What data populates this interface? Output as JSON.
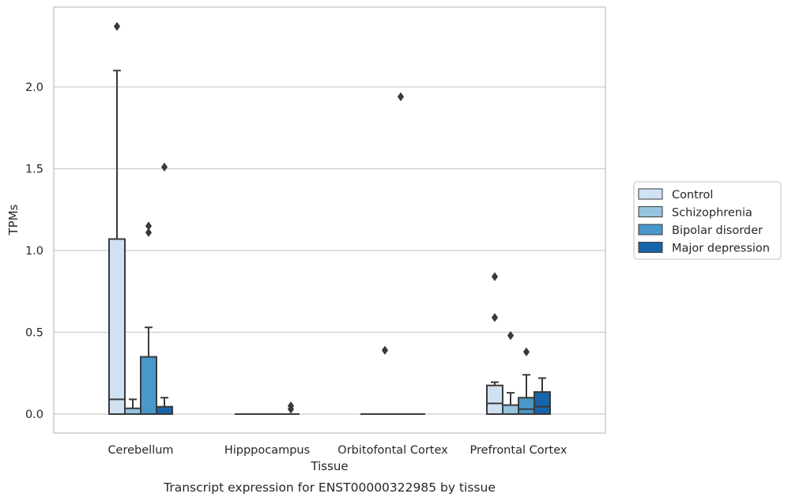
{
  "chart_data": {
    "type": "boxplot",
    "caption": "Transcript expression for ENST00000322985 by tissue",
    "xlabel": "Tissue",
    "ylabel": "TPMs",
    "ylim": [
      -0.115,
      2.49
    ],
    "yticks": [
      0.0,
      0.5,
      1.0,
      1.5,
      2.0
    ],
    "ytick_labels": [
      "0.0",
      "0.5",
      "1.0",
      "1.5",
      "2.0"
    ],
    "categories": [
      "Cerebellum",
      "Hipppocampus",
      "Orbitofontal Cortex",
      "Prefrontal Cortex"
    ],
    "grid": "horizontal",
    "legend_position": "right-outside",
    "series": [
      {
        "name": "Control",
        "color": "#d0e1f2",
        "boxes": [
          {
            "q1": 0.0,
            "median": 0.09,
            "q3": 1.07,
            "whisker_low": 0.0,
            "whisker_high": 2.1,
            "outliers": [
              2.37
            ]
          },
          {
            "q1": 0.0,
            "median": 0.0,
            "q3": 0.0,
            "whisker_low": 0.0,
            "whisker_high": 0.0,
            "outliers": []
          },
          {
            "q1": 0.0,
            "median": 0.0,
            "q3": 0.0,
            "whisker_low": 0.0,
            "whisker_high": 0.0,
            "outliers": []
          },
          {
            "q1": 0.0,
            "median": 0.065,
            "q3": 0.175,
            "whisker_low": 0.0,
            "whisker_high": 0.195,
            "outliers": [
              0.84,
              0.59
            ]
          }
        ]
      },
      {
        "name": "Schizophrenia",
        "color": "#94c4df",
        "boxes": [
          {
            "q1": 0.0,
            "median": 0.0,
            "q3": 0.035,
            "whisker_low": 0.0,
            "whisker_high": 0.09,
            "outliers": []
          },
          {
            "q1": 0.0,
            "median": 0.0,
            "q3": 0.0,
            "whisker_low": 0.0,
            "whisker_high": 0.0,
            "outliers": []
          },
          {
            "q1": 0.0,
            "median": 0.0,
            "q3": 0.0,
            "whisker_low": 0.0,
            "whisker_high": 0.0,
            "outliers": [
              0.39
            ]
          },
          {
            "q1": 0.0,
            "median": 0.0,
            "q3": 0.055,
            "whisker_low": 0.0,
            "whisker_high": 0.13,
            "outliers": [
              0.48
            ]
          }
        ]
      },
      {
        "name": "Bipolar disorder",
        "color": "#4a98c9",
        "boxes": [
          {
            "q1": 0.0,
            "median": 0.0,
            "q3": 0.35,
            "whisker_low": 0.0,
            "whisker_high": 0.53,
            "outliers": [
              1.15,
              1.11
            ]
          },
          {
            "q1": 0.0,
            "median": 0.0,
            "q3": 0.0,
            "whisker_low": 0.0,
            "whisker_high": 0.0,
            "outliers": []
          },
          {
            "q1": 0.0,
            "median": 0.0,
            "q3": 0.0,
            "whisker_low": 0.0,
            "whisker_high": 0.0,
            "outliers": [
              1.94
            ]
          },
          {
            "q1": 0.0,
            "median": 0.03,
            "q3": 0.1,
            "whisker_low": 0.0,
            "whisker_high": 0.24,
            "outliers": [
              0.38
            ]
          }
        ]
      },
      {
        "name": "Major depression",
        "color": "#1764ab",
        "boxes": [
          {
            "q1": 0.0,
            "median": 0.0,
            "q3": 0.045,
            "whisker_low": 0.0,
            "whisker_high": 0.1,
            "outliers": [
              1.51
            ]
          },
          {
            "q1": 0.0,
            "median": 0.0,
            "q3": 0.0,
            "whisker_low": 0.0,
            "whisker_high": 0.0,
            "outliers": [
              0.05,
              0.03
            ]
          },
          {
            "q1": 0.0,
            "median": 0.0,
            "q3": 0.0,
            "whisker_low": 0.0,
            "whisker_high": 0.0,
            "outliers": []
          },
          {
            "q1": 0.0,
            "median": 0.045,
            "q3": 0.135,
            "whisker_low": 0.0,
            "whisker_high": 0.22,
            "outliers": []
          }
        ]
      }
    ]
  },
  "colors": {
    "grid": "#cccccc",
    "frame": "#cccccc",
    "box_edge": "#3a3a3a",
    "text": "#262626"
  }
}
